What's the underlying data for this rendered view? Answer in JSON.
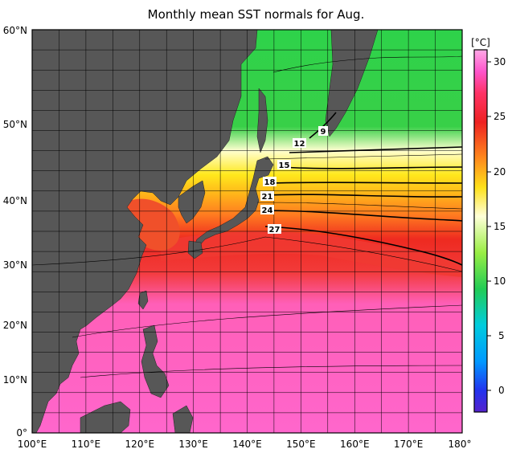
{
  "title": "Monthly mean SST normals for Aug.",
  "map": {
    "lon_range": [
      100,
      180
    ],
    "lat_range": [
      0,
      60
    ],
    "lat_labels": [
      "60°N",
      "50°N",
      "40°N",
      "30°N",
      "20°N",
      "10°N",
      "0°"
    ],
    "lon_labels": [
      "100°E",
      "110°E",
      "120°E",
      "130°E",
      "140°E",
      "150°E",
      "160°E",
      "170°E",
      "180°"
    ],
    "contour_labels": [
      "9",
      "12",
      "15",
      "18",
      "21",
      "24",
      "27"
    ]
  },
  "colorbar": {
    "unit_label": "[°C]",
    "tick_labels": [
      "30",
      "25",
      "20",
      "15",
      "10",
      "5",
      "0"
    ],
    "range": [
      -2,
      31
    ],
    "colors": {
      "hot": "#ff66cc",
      "red": "#ee2a20",
      "orange": "#ff8a1c",
      "yellow": "#ffe11a",
      "pale": "#ffffd8",
      "green": "#55cc44",
      "bright_green": "#22cc55",
      "cyan": "#00ccdd",
      "blue": "#2244ff",
      "violet": "#5522cc"
    }
  },
  "colors": {
    "land": "#575757",
    "frame": "#000000"
  }
}
